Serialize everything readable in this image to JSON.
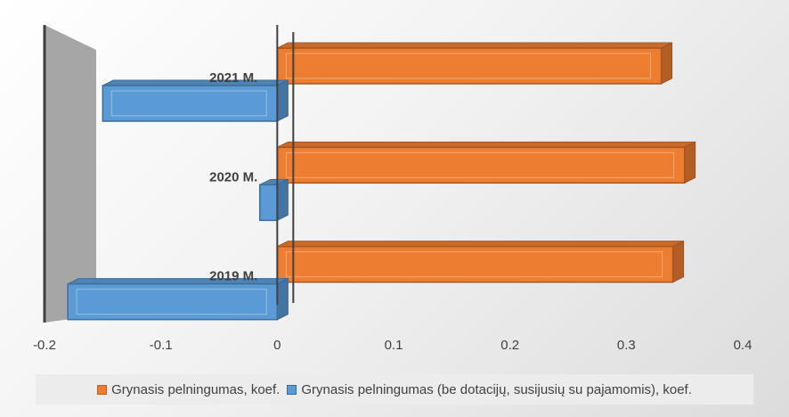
{
  "chart_data": {
    "type": "bar",
    "orientation": "horizontal",
    "categories": [
      "2019 M.",
      "2020 M.",
      "2021 M."
    ],
    "series": [
      {
        "name": "Grynasis pelningumas, koef.",
        "values": [
          0.34,
          0.35,
          0.33
        ],
        "color": "#ED7D31"
      },
      {
        "name": "Grynasis pelningumas (be dotacijų, susijusių su pajamomis), koef.",
        "values": [
          -0.18,
          -0.015,
          -0.15
        ],
        "color": "#5B9BD5"
      }
    ],
    "xlim": [
      -0.2,
      0.4
    ],
    "xticks": [
      "-0.2",
      "-0.1",
      "0",
      "0.1",
      "0.2",
      "0.3",
      "0.4"
    ],
    "title": "",
    "xlabel": "",
    "ylabel": "",
    "legend_position": "bottom",
    "grid": false
  },
  "legend": {
    "orange_label": "Grynasis pelningumas, koef.",
    "blue_label": "Grynasis pelningumas (be dotacijų, susijusių su pajamomis), koef."
  }
}
